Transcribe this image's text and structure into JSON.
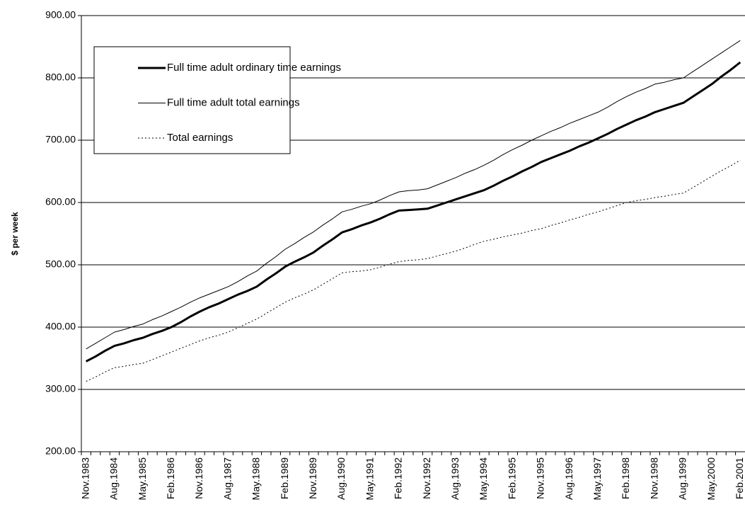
{
  "chart_data": {
    "type": "line",
    "y_label": "$ per week",
    "ylim": [
      200,
      900
    ],
    "yticks": [
      {
        "value": 200,
        "label": "200.00"
      },
      {
        "value": 300,
        "label": "300.00"
      },
      {
        "value": 400,
        "label": "400.00"
      },
      {
        "value": 500,
        "label": "500.00"
      },
      {
        "value": 600,
        "label": "600.00"
      },
      {
        "value": 700,
        "label": "700.00"
      },
      {
        "value": 800,
        "label": "800.00"
      },
      {
        "value": 900,
        "label": "900.00"
      }
    ],
    "grid": true,
    "legend": "upper left",
    "categories": [
      "Nov.1983",
      null,
      null,
      "Aug.1984",
      null,
      null,
      "May.1985",
      null,
      null,
      "Feb.1986",
      null,
      null,
      "Nov.1986",
      null,
      null,
      "Aug.1987",
      null,
      null,
      "May.1988",
      null,
      null,
      "Feb.1989",
      null,
      null,
      "Nov.1989",
      null,
      null,
      "Aug.1990",
      null,
      null,
      "May.1991",
      null,
      null,
      "Feb.1992",
      null,
      null,
      "Nov.1992",
      null,
      null,
      "Aug.1993",
      null,
      null,
      "May.1994",
      null,
      null,
      "Feb.1995",
      null,
      null,
      "Nov.1995",
      null,
      null,
      "Aug.1996",
      null,
      null,
      "May.1997",
      null,
      null,
      "Feb.1998",
      null,
      null,
      "Nov.1998",
      null,
      null,
      "Aug.1999",
      null,
      null,
      "May.2000",
      null,
      null,
      "Feb.2001"
    ],
    "series": [
      {
        "name": "Full time adult ordinary time earnings",
        "color": "#000000",
        "width": 3,
        "style": "solid",
        "values": [
          345,
          353,
          362,
          370,
          374,
          379,
          383,
          389,
          394,
          400,
          408,
          417,
          425,
          432,
          438,
          445,
          452,
          458,
          465,
          476,
          486,
          497,
          505,
          512,
          520,
          531,
          541,
          552,
          557,
          563,
          568,
          574,
          581,
          587,
          588,
          589,
          590,
          595,
          600,
          605,
          610,
          615,
          620,
          627,
          635,
          642,
          650,
          657,
          665,
          671,
          677,
          683,
          690,
          696,
          703,
          710,
          718,
          725,
          732,
          738,
          745,
          750,
          755,
          760,
          770,
          780,
          790,
          802,
          813,
          825
        ]
      },
      {
        "name": "Full time adult total earnings",
        "color": "#000000",
        "width": 1,
        "style": "solid",
        "values": [
          365,
          374,
          383,
          392,
          396,
          401,
          405,
          412,
          418,
          425,
          432,
          440,
          447,
          453,
          459,
          465,
          473,
          482,
          490,
          502,
          513,
          525,
          534,
          544,
          553,
          564,
          574,
          585,
          589,
          594,
          598,
          604,
          611,
          617,
          619,
          620,
          622,
          628,
          634,
          640,
          647,
          653,
          660,
          668,
          677,
          685,
          692,
          700,
          707,
          714,
          720,
          727,
          733,
          739,
          745,
          753,
          762,
          770,
          777,
          783,
          790,
          793,
          797,
          800,
          810,
          820,
          830,
          840,
          850,
          860
        ]
      },
      {
        "name": "Total earnings",
        "color": "#000000",
        "width": 1,
        "style": "dotted",
        "values": [
          313,
          320,
          328,
          335,
          337,
          340,
          342,
          348,
          354,
          360,
          366,
          372,
          378,
          383,
          387,
          392,
          399,
          406,
          413,
          422,
          431,
          440,
          447,
          453,
          460,
          469,
          478,
          487,
          489,
          490,
          492,
          496,
          501,
          505,
          507,
          508,
          510,
          514,
          518,
          522,
          527,
          533,
          538,
          541,
          545,
          548,
          551,
          555,
          558,
          563,
          567,
          572,
          576,
          581,
          585,
          590,
          595,
          600,
          603,
          605,
          608,
          610,
          613,
          615,
          624,
          633,
          642,
          651,
          659,
          668
        ]
      }
    ]
  }
}
